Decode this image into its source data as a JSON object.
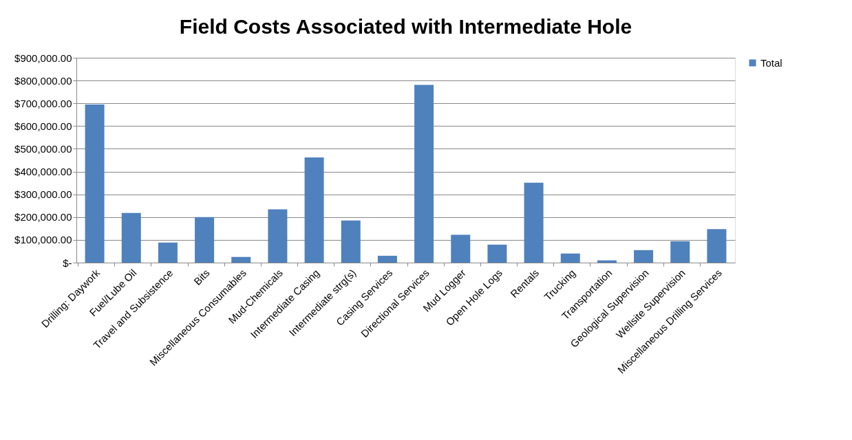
{
  "chart_data": {
    "type": "bar",
    "title": "Field Costs Associated with Intermediate Hole",
    "categories": [
      "Drilling: Daywork",
      "Fuel/Lube Oil",
      "Travel and Subsistence",
      "Bits",
      "Miscellaneous Consumables",
      "Mud-Chemicals",
      "Intermediate Casing",
      "Intermediate strg(s)",
      "Casing Services",
      "Directional Services",
      "Mud Logger",
      "Open Hole Logs",
      "Rentals",
      "Trucking",
      "Transportation",
      "Geological Supervision",
      "Wellsite Supervision",
      "Miscellaneous Drilling Services"
    ],
    "series": [
      {
        "name": "Total",
        "color": "#4f81bd",
        "values": [
          695000,
          218000,
          88000,
          200000,
          25000,
          234000,
          462000,
          185000,
          30000,
          781000,
          122000,
          79000,
          351000,
          40000,
          10000,
          55000,
          94000,
          147000
        ]
      }
    ],
    "ylim": [
      0,
      900000
    ],
    "yticks": [
      {
        "value": 0,
        "label": "$-"
      },
      {
        "value": 100000,
        "label": "$100,000.00"
      },
      {
        "value": 200000,
        "label": "$200,000.00"
      },
      {
        "value": 300000,
        "label": "$300,000.00"
      },
      {
        "value": 400000,
        "label": "$400,000.00"
      },
      {
        "value": 500000,
        "label": "$500,000.00"
      },
      {
        "value": 600000,
        "label": "$600,000.00"
      },
      {
        "value": 700000,
        "label": "$700,000.00"
      },
      {
        "value": 800000,
        "label": "$800,000.00"
      },
      {
        "value": 900000,
        "label": "$900,000.00"
      }
    ],
    "grid": "y",
    "legend": "right"
  }
}
